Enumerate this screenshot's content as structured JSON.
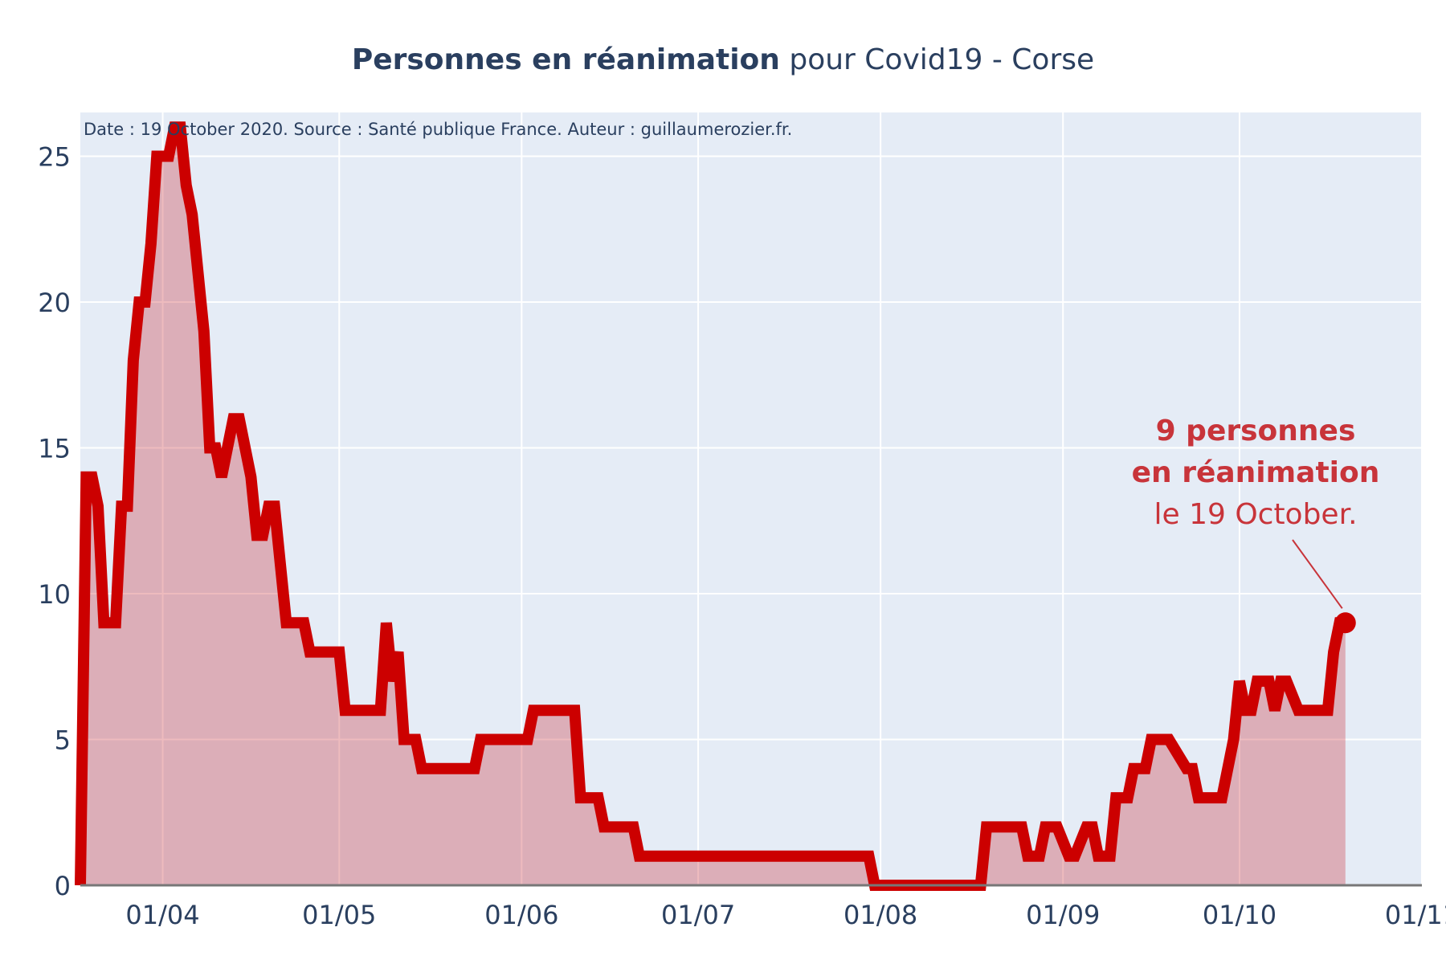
{
  "title": {
    "bold": "Personnes en réanimation",
    "rest": " pour Covid19 - Corse"
  },
  "source_note": "Date : 19 October 2020. Source : Santé publique France. Auteur : guillaumerozier.fr.",
  "annotation": {
    "line1": "9 personnes",
    "line2": "en réanimation",
    "line3": "le 19 October."
  },
  "colors": {
    "plot_bg": "#e5ecf6",
    "grid": "#ffffff",
    "line": "#cc0000",
    "fill": "rgba(200,30,40,0.3)",
    "text": "#2a3f5f",
    "annotation": "#c8343a"
  },
  "chart_data": {
    "type": "area",
    "title": "Personnes en réanimation pour Covid19 - Corse",
    "xlabel": "",
    "ylabel": "",
    "ylim": [
      0,
      26.5
    ],
    "xlim": [
      "2020-03-18",
      "2020-11-01"
    ],
    "yticks": [
      0,
      5,
      10,
      15,
      20,
      25
    ],
    "xticks": [
      {
        "date": "2020-04-01",
        "label": "01/04"
      },
      {
        "date": "2020-05-01",
        "label": "01/05"
      },
      {
        "date": "2020-06-01",
        "label": "01/06"
      },
      {
        "date": "2020-07-01",
        "label": "01/07"
      },
      {
        "date": "2020-08-01",
        "label": "01/08"
      },
      {
        "date": "2020-09-01",
        "label": "01/09"
      },
      {
        "date": "2020-10-01",
        "label": "01/10"
      },
      {
        "date": "2020-11-01",
        "label": "01/11"
      }
    ],
    "grid": true,
    "series": [
      {
        "x": [
          "2020-03-18",
          "2020-03-19",
          "2020-03-20",
          "2020-03-21",
          "2020-03-22",
          "2020-03-23",
          "2020-03-24",
          "2020-03-25",
          "2020-03-26",
          "2020-03-27",
          "2020-03-28",
          "2020-03-29",
          "2020-03-30",
          "2020-03-31",
          "2020-04-01",
          "2020-04-02",
          "2020-04-03",
          "2020-04-04",
          "2020-04-05",
          "2020-04-06",
          "2020-04-07",
          "2020-04-08",
          "2020-04-09",
          "2020-04-10",
          "2020-04-11",
          "2020-04-12",
          "2020-04-13",
          "2020-04-14",
          "2020-04-15",
          "2020-04-16",
          "2020-04-17",
          "2020-04-18",
          "2020-04-19",
          "2020-04-20",
          "2020-04-21",
          "2020-04-22",
          "2020-04-23",
          "2020-04-24",
          "2020-04-25",
          "2020-04-26",
          "2020-04-27",
          "2020-04-30",
          "2020-05-01",
          "2020-05-02",
          "2020-05-03",
          "2020-05-08",
          "2020-05-09",
          "2020-05-10",
          "2020-05-11",
          "2020-05-12",
          "2020-05-13",
          "2020-05-14",
          "2020-05-15",
          "2020-05-16",
          "2020-05-24",
          "2020-05-25",
          "2020-05-26",
          "2020-06-02",
          "2020-06-03",
          "2020-06-04",
          "2020-06-10",
          "2020-06-11",
          "2020-06-14",
          "2020-06-15",
          "2020-06-20",
          "2020-06-21",
          "2020-07-30",
          "2020-07-31",
          "2020-08-18",
          "2020-08-19",
          "2020-08-25",
          "2020-08-26",
          "2020-08-28",
          "2020-08-29",
          "2020-08-31",
          "2020-09-02",
          "2020-09-03",
          "2020-09-05",
          "2020-09-06",
          "2020-09-07",
          "2020-09-09",
          "2020-09-10",
          "2020-09-12",
          "2020-09-13",
          "2020-09-14",
          "2020-09-15",
          "2020-09-16",
          "2020-09-17",
          "2020-09-19",
          "2020-09-22",
          "2020-09-23",
          "2020-09-24",
          "2020-09-25",
          "2020-09-28",
          "2020-09-30",
          "2020-10-01",
          "2020-10-02",
          "2020-10-03",
          "2020-10-04",
          "2020-10-06",
          "2020-10-07",
          "2020-10-08",
          "2020-10-09",
          "2020-10-11",
          "2020-10-12",
          "2020-10-15",
          "2020-10-16",
          "2020-10-17",
          "2020-10-18",
          "2020-10-19"
        ],
        "y": [
          0,
          14,
          14,
          13,
          9,
          9,
          9,
          13,
          13,
          18,
          20,
          20,
          22,
          25,
          25,
          25,
          26,
          26,
          24,
          23,
          21,
          19,
          15,
          15,
          14,
          15,
          16,
          16,
          15,
          14,
          12,
          12,
          13,
          13,
          11,
          9,
          9,
          9,
          9,
          8,
          8,
          8,
          8,
          6,
          6,
          6,
          9,
          7,
          8,
          5,
          5,
          5,
          4,
          4,
          4,
          5,
          5,
          5,
          6,
          6,
          6,
          3,
          3,
          2,
          2,
          1,
          1,
          0,
          0,
          2,
          2,
          1,
          1,
          2,
          2,
          1,
          1,
          2,
          2,
          1,
          1,
          3,
          3,
          4,
          4,
          4,
          5,
          5,
          5,
          4,
          4,
          3,
          3,
          3,
          5,
          7,
          6,
          6,
          7,
          7,
          6,
          7,
          7,
          6,
          6,
          6,
          6,
          8,
          9,
          9
        ]
      }
    ],
    "marker": {
      "date": "2020-10-19",
      "value": 9
    }
  }
}
